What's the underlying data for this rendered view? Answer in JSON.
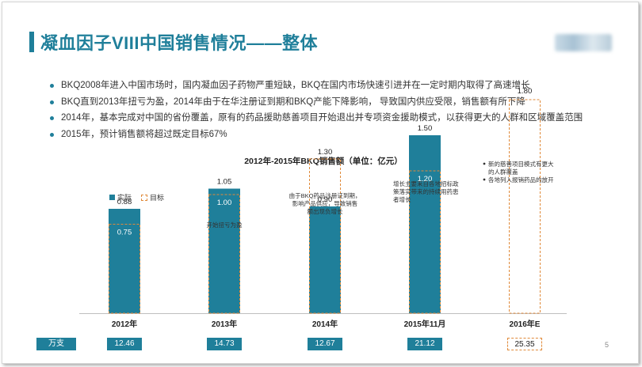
{
  "title": "凝血因子VIII中国销售情况——整体",
  "bullets": [
    "BKQ2008年进入中国市场时，国内凝血因子药物严重短缺，BKQ在国内市场快速引进并在一定时期内取得了高速增长",
    "BKQ直到2013年扭亏为盈，2014年由于在华注册证到期和BKQ产能下降影响，  导致国内供应受限，销售额有所下降",
    "2014年，基本完成对中国的省份覆盖，原有的药品援助慈善项目开始退出并专项资金援助模式，以获得更大的人群和区域覆盖范围",
    "2015年，预计销售额将超过既定目标67%"
  ],
  "unit_label": "万支",
  "page_number": "5",
  "colors": {
    "accent": "#1f7f9a",
    "target_border": "#e08a3a"
  },
  "chart_data": {
    "type": "bar",
    "title": "2012年-2015年BKQ销售额（单位：亿元）",
    "categories": [
      "2012年",
      "2013年",
      "2014年",
      "2015年11月",
      "2016年E"
    ],
    "series": [
      {
        "name": "实际",
        "values": [
          0.88,
          1.05,
          0.9,
          1.5,
          null
        ]
      },
      {
        "name": "目标",
        "values": [
          0.75,
          1.0,
          1.3,
          1.2,
          1.8
        ]
      }
    ],
    "legend": [
      "实际",
      "目标"
    ],
    "legend_position": "top-left",
    "ylim": [
      0,
      2.0
    ],
    "annotations": [
      {
        "category": "2013年",
        "lines": [
          "开始扭亏为盈"
        ]
      },
      {
        "category": "2014年",
        "lines": [
          "由于BKQ药品注册证到期，",
          "影响产品供应，导致销售",
          "额出现负增长"
        ]
      },
      {
        "category": "2015年11月",
        "lines": [
          "增长主要来自各地招标政",
          "策落实带来的持续用药患",
          "者增长"
        ]
      },
      {
        "category": "2016年E",
        "lines": [
          "新的慈善项目模式有更大",
          "的人群覆盖",
          "各地列入报销药品的放开"
        ]
      }
    ],
    "units_sold": [
      "12.46",
      "14.73",
      "12.67",
      "21.12",
      "25.35"
    ]
  }
}
